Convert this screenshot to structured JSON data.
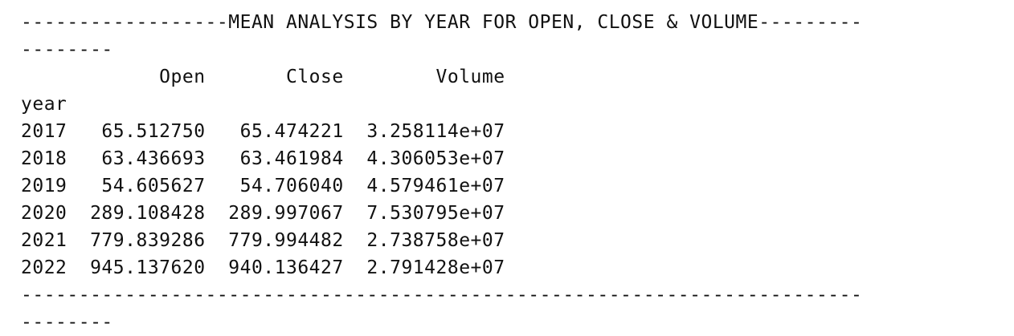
{
  "output": {
    "header_line_1": "------------------MEAN ANALYSIS BY YEAR FOR OPEN, CLOSE & VOLUME---------",
    "header_line_2": "--------",
    "column_header_line": "            Open       Close        Volume",
    "index_name_line": "year",
    "rows": [
      "2017   65.512750   65.474221  3.258114e+07",
      "2018   63.436693   63.461984  4.306053e+07",
      "2019   54.605627   54.706040  4.579461e+07",
      "2020  289.108428  289.997067  7.530795e+07",
      "2021  779.839286  779.994482  2.738758e+07",
      "2022  945.137620  940.136427  2.791428e+07"
    ],
    "footer_line_1": "-------------------------------------------------------------------------",
    "footer_line_2": "--------"
  }
}
